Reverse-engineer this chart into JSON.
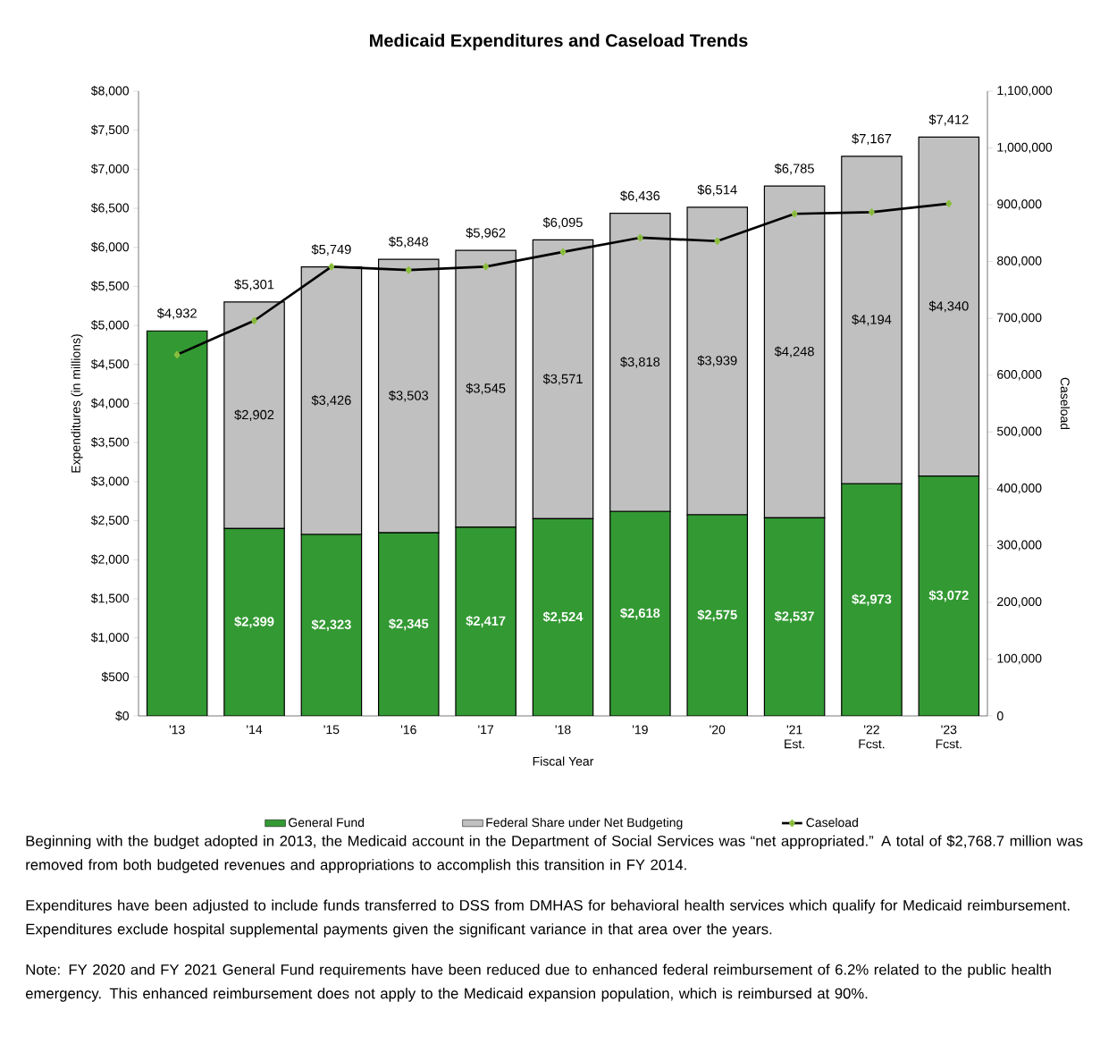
{
  "chart_data": {
    "type": "bar",
    "stacked": true,
    "title": "Medicaid Expenditures and Caseload Trends",
    "xlabel": "Fiscal Year",
    "ylabel": "Expenditures (in millions)",
    "y2label": "Caseload",
    "categories": [
      "'13",
      "'14",
      "'15",
      "'16",
      "'17",
      "'18",
      "'19",
      "'20",
      "'21 Est.",
      "'22 Fcst.",
      "'23 Fcst."
    ],
    "series": [
      {
        "name": "General Fund",
        "color": "#339933",
        "values": [
          4932,
          2399,
          2323,
          2345,
          2417,
          2524,
          2618,
          2575,
          2537,
          2973,
          3072
        ],
        "value_labels": [
          null,
          "$2,399",
          "$2,323",
          "$2,345",
          "$2,417",
          "$2,524",
          "$2,618",
          "$2,575",
          "$2,537",
          "$2,973",
          "$3,072"
        ]
      },
      {
        "name": "Federal Share under Net Budgeting",
        "color": "#c0c0c0",
        "values": [
          0,
          2902,
          3426,
          3503,
          3545,
          3571,
          3818,
          3939,
          4248,
          4194,
          4340
        ],
        "value_labels": [
          null,
          "$2,902",
          "$3,426",
          "$3,503",
          "$3,545",
          "$3,571",
          "$3,818",
          "$3,939",
          "$4,248",
          "$4,194",
          "$4,340"
        ]
      },
      {
        "name": "Caseload",
        "type": "line",
        "axis": "y2",
        "color": "#000000",
        "marker": "diamond",
        "values": [
          636000,
          696000,
          791000,
          785000,
          791000,
          817000,
          842000,
          836000,
          884000,
          887000,
          902000
        ]
      }
    ],
    "totals": [
      "$4,932",
      "$5,301",
      "$5,749",
      "$5,848",
      "$5,962",
      "$6,095",
      "$6,436",
      "$6,514",
      "$6,785",
      "$7,167",
      "$7,412"
    ],
    "ylim": [
      0,
      8000
    ],
    "yticks": [
      {
        "value": 0,
        "label": "$0"
      },
      {
        "value": 500,
        "label": "$500"
      },
      {
        "value": 1000,
        "label": "$1,000"
      },
      {
        "value": 1500,
        "label": "$1,500"
      },
      {
        "value": 2000,
        "label": "$2,000"
      },
      {
        "value": 2500,
        "label": "$2,500"
      },
      {
        "value": 3000,
        "label": "$3,000"
      },
      {
        "value": 3500,
        "label": "$3,500"
      },
      {
        "value": 4000,
        "label": "$4,000"
      },
      {
        "value": 4500,
        "label": "$4,500"
      },
      {
        "value": 5000,
        "label": "$5,000"
      },
      {
        "value": 5500,
        "label": "$5,500"
      },
      {
        "value": 6000,
        "label": "$6,000"
      },
      {
        "value": 6500,
        "label": "$6,500"
      },
      {
        "value": 7000,
        "label": "$7,000"
      },
      {
        "value": 7500,
        "label": "$7,500"
      },
      {
        "value": 8000,
        "label": "$8,000"
      }
    ],
    "y2lim": [
      0,
      1100000
    ],
    "y2ticks": [
      0,
      {
        "value": 100000,
        "label": "100,000"
      },
      {
        "value": 200000,
        "label": "200,000"
      },
      {
        "value": 300000,
        "label": "300,000"
      },
      {
        "value": 400000,
        "label": "400,000"
      },
      {
        "value": 500000,
        "label": "500,000"
      },
      {
        "value": 600000,
        "label": "600,000"
      },
      {
        "value": 700000,
        "label": "700,000"
      },
      {
        "value": 800000,
        "label": "800,000"
      },
      {
        "value": 900000,
        "label": "900,000"
      },
      {
        "value": 1000000,
        "label": "1,000,000"
      },
      {
        "value": 1100000,
        "label": "1,100,000"
      }
    ],
    "legend": "bottom",
    "annotations": [
      "Beginning with the budget adopted in 2013, the Medicaid account in the Department of Social Services was “net appropriated.”  A total of $2,768.7 million was removed from both budgeted revenues and appropriations to accomplish this transition in FY 2014.",
      "Expenditures have been adjusted to include funds transferred to DSS from DMHAS for behavioral health services which qualify for Medicaid reimbursement.  Expenditures exclude hospital supplemental payments given the significant variance in that area over the years.",
      "Note:  FY 2020 and FY 2021 General Fund requirements have been reduced due to enhanced federal reimbursement of 6.2% related to the public health emergency.  This enhanced reimbursement does not apply to the Medicaid expansion population, which is reimbursed at 90%."
    ]
  }
}
